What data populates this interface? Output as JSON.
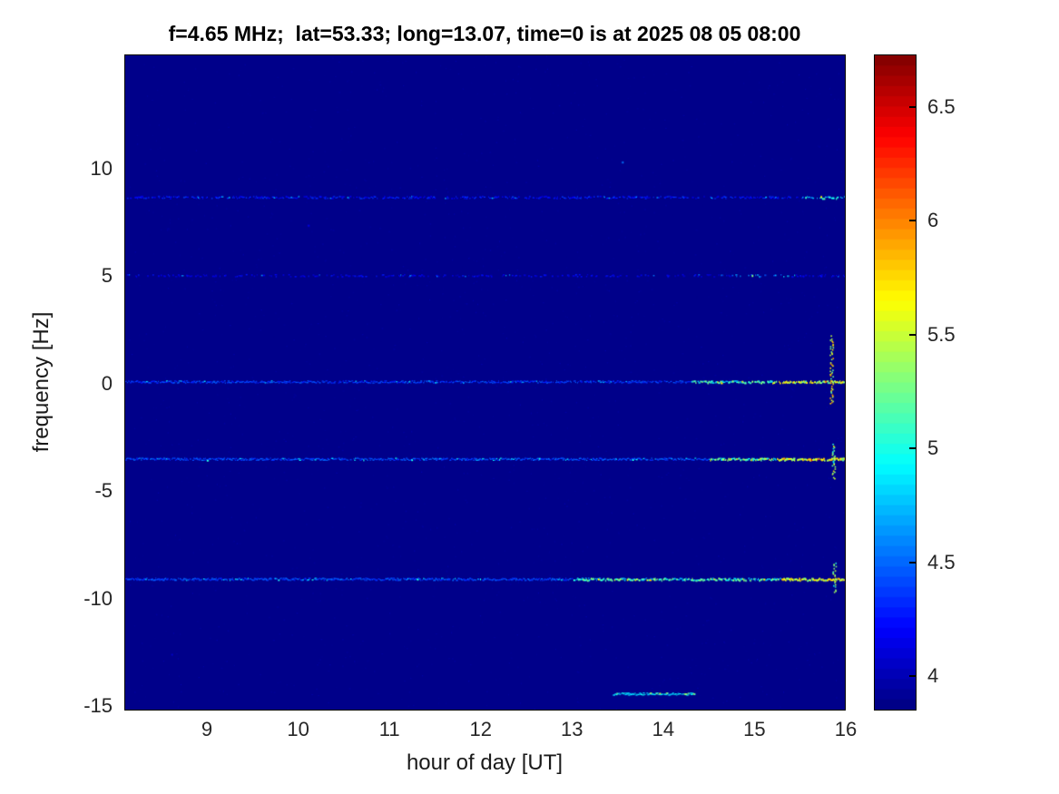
{
  "figure": {
    "title": "f=4.65 MHz;  lat=53.33; long=13.07, time=0 is at 2025 08 05 08:00",
    "background_color": "#ffffff"
  },
  "axes": {
    "xlabel": "hour of day [UT]",
    "ylabel": "frequency [Hz]",
    "x_ticks": [
      9,
      10,
      11,
      12,
      13,
      14,
      15,
      16
    ],
    "y_ticks": [
      10,
      5,
      0,
      -5,
      -10,
      -15
    ],
    "xlim": [
      8.095,
      16.0
    ],
    "ylim": [
      -15.2,
      15.3
    ]
  },
  "colorbar": {
    "ticks": [
      4,
      4.5,
      5,
      5.5,
      6,
      6.5
    ],
    "vmin": 3.85,
    "vmax": 6.73,
    "colormap": "jet",
    "levels": 64
  },
  "chart_data": {
    "type": "heatmap",
    "title": "f=4.65 MHz;  lat=53.33; long=13.07, time=0 is at 2025 08 05 08:00",
    "xlabel": "hour of day [UT]",
    "ylabel": "frequency [Hz]",
    "xlim": [
      8.095,
      16.0
    ],
    "ylim": [
      -15.2,
      15.3
    ],
    "color_scale": {
      "colormap": "jet",
      "vmin": 3.85,
      "vmax": 6.73,
      "ticks": [
        4,
        4.5,
        5,
        5.5,
        6,
        6.5
      ]
    },
    "background_value": 3.88,
    "description": "Doppler spectrogram: deep-blue background (~3.9) with narrow horizontal spectral lines at fixed Doppler shifts across 08:00-16:00 UT, intensifying toward 15-16 UT, plus a vertical burst near 15.85 UT",
    "spectral_lines": [
      {
        "freq": 8.7,
        "x_start": 8.095,
        "x_end": 16.0,
        "base": 4.28,
        "density": 0.55,
        "hot": [
          {
            "from": 15.55,
            "to": 16.0,
            "value": 4.9
          }
        ]
      },
      {
        "freq": 5.05,
        "x_start": 8.095,
        "x_end": 16.0,
        "base": 4.18,
        "density": 0.32,
        "hot": [
          {
            "from": 14.75,
            "to": 15.45,
            "value": 4.6
          }
        ]
      },
      {
        "freq": 0.1,
        "x_start": 8.095,
        "x_end": 16.0,
        "base": 4.38,
        "density": 0.82,
        "hot": [
          {
            "from": 14.3,
            "to": 16.0,
            "value": 5.0
          },
          {
            "from": 15.2,
            "to": 16.0,
            "value": 5.45
          }
        ]
      },
      {
        "freq": -3.5,
        "x_start": 8.095,
        "x_end": 16.0,
        "base": 4.42,
        "density": 0.86,
        "hot": [
          {
            "from": 14.5,
            "to": 16.0,
            "value": 5.2
          },
          {
            "from": 15.25,
            "to": 16.0,
            "value": 5.55
          }
        ]
      },
      {
        "freq": -9.1,
        "x_start": 8.095,
        "x_end": 16.0,
        "base": 4.42,
        "density": 0.86,
        "hot": [
          {
            "from": 13.0,
            "to": 16.0,
            "value": 5.0
          },
          {
            "from": 15.3,
            "to": 16.0,
            "value": 5.5
          }
        ]
      },
      {
        "freq": -14.45,
        "x_start": 13.45,
        "x_end": 14.35,
        "base": 4.85,
        "density": 0.9,
        "hot": []
      }
    ],
    "vertical_bursts": [
      {
        "x": 15.85,
        "freq_center": 0.7,
        "freq_span": 3.2,
        "value": 5.6
      },
      {
        "x": 15.87,
        "freq_center": -3.6,
        "freq_span": 1.6,
        "value": 5.3
      },
      {
        "x": 15.88,
        "freq_center": -9.0,
        "freq_span": 1.4,
        "value": 5.2
      }
    ],
    "isolated_specks": [
      {
        "x": 13.55,
        "freq": 10.35,
        "value": 4.55
      },
      {
        "x": 10.1,
        "freq": 7.4,
        "value": 4.15
      },
      {
        "x": 8.6,
        "freq": -12.6,
        "value": 4.05
      }
    ]
  }
}
